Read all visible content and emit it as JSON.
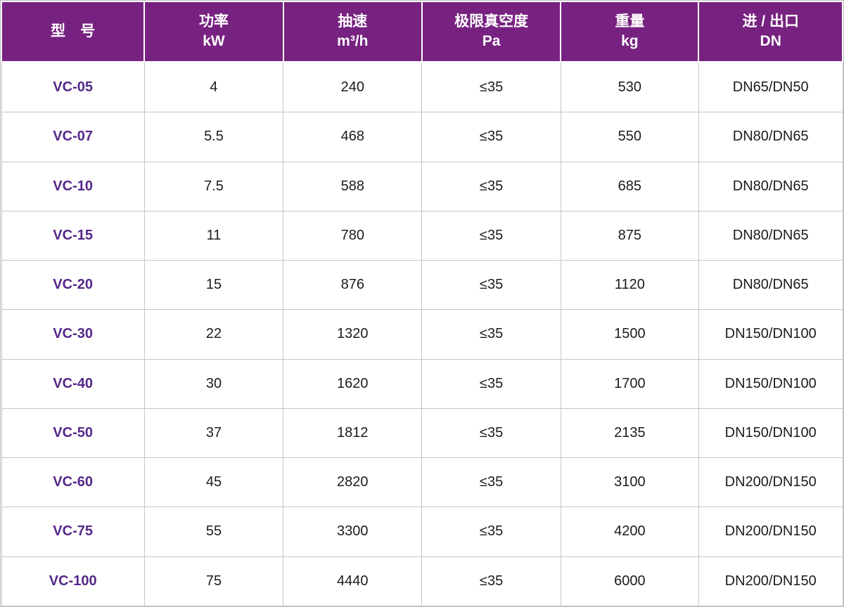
{
  "table": {
    "header": {
      "columns": [
        {
          "title": "型　号",
          "unit": ""
        },
        {
          "title": "功率",
          "unit": "kW"
        },
        {
          "title": "抽速",
          "unit": "m³/h"
        },
        {
          "title": "极限真空度",
          "unit": "Pa"
        },
        {
          "title": "重量",
          "unit": "kg"
        },
        {
          "title": "进 / 出口",
          "unit": "DN"
        }
      ]
    },
    "rows": [
      {
        "model": "VC-05",
        "power": "4",
        "speed": "240",
        "vacuum": "≤35",
        "weight": "530",
        "ports": "DN65/DN50"
      },
      {
        "model": "VC-07",
        "power": "5.5",
        "speed": "468",
        "vacuum": "≤35",
        "weight": "550",
        "ports": "DN80/DN65"
      },
      {
        "model": "VC-10",
        "power": "7.5",
        "speed": "588",
        "vacuum": "≤35",
        "weight": "685",
        "ports": "DN80/DN65"
      },
      {
        "model": "VC-15",
        "power": "11",
        "speed": "780",
        "vacuum": "≤35",
        "weight": "875",
        "ports": "DN80/DN65"
      },
      {
        "model": "VC-20",
        "power": "15",
        "speed": "876",
        "vacuum": "≤35",
        "weight": "1120",
        "ports": "DN80/DN65"
      },
      {
        "model": "VC-30",
        "power": "22",
        "speed": "1320",
        "vacuum": "≤35",
        "weight": "1500",
        "ports": "DN150/DN100"
      },
      {
        "model": "VC-40",
        "power": "30",
        "speed": "1620",
        "vacuum": "≤35",
        "weight": "1700",
        "ports": "DN150/DN100"
      },
      {
        "model": "VC-50",
        "power": "37",
        "speed": "1812",
        "vacuum": "≤35",
        "weight": "2135",
        "ports": "DN150/DN100"
      },
      {
        "model": "VC-60",
        "power": "45",
        "speed": "2820",
        "vacuum": "≤35",
        "weight": "3100",
        "ports": "DN200/DN150"
      },
      {
        "model": "VC-75",
        "power": "55",
        "speed": "3300",
        "vacuum": "≤35",
        "weight": "4200",
        "ports": "DN200/DN150"
      },
      {
        "model": "VC-100",
        "power": "75",
        "speed": "4440",
        "vacuum": "≤35",
        "weight": "6000",
        "ports": "DN200/DN150"
      }
    ],
    "colors": {
      "header_bg": "#772280",
      "header_text": "#ffffff",
      "model_text": "#542788",
      "grid_border": "#c6c6c6"
    }
  }
}
